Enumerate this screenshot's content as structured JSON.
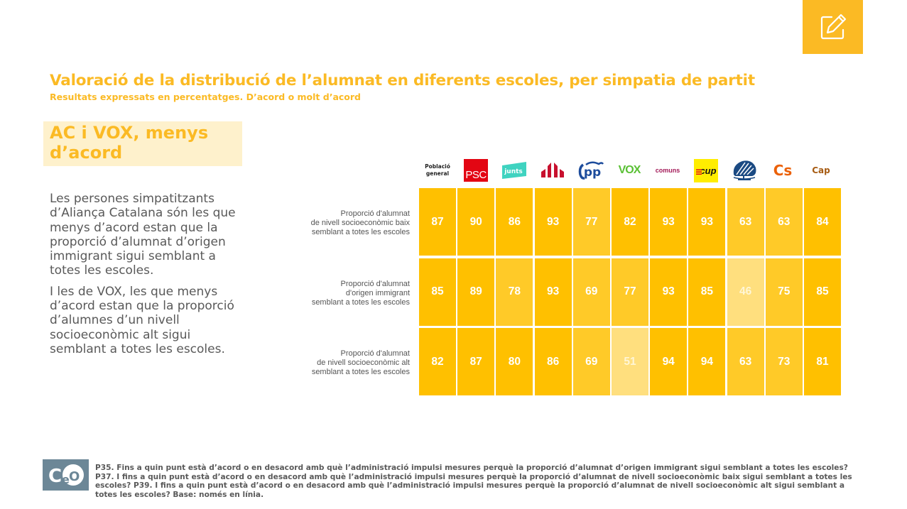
{
  "header": {
    "title": "Valoració de la distribució de l’alumnat en diferents escoles, per simpatia de partit",
    "subtitle": "Resultats expressats en percentatges. D’acord o molt d’acord",
    "edit_icon": "edit-pencil-icon"
  },
  "sidebar": {
    "headline": "AC i VOX, menys d’acord",
    "paragraphs": [
      "Les persones simpatitzants d’Aliança Catalana són les que menys d’acord estan que la proporció d’alumnat d’origen immigrant sigui semblant a totes les escoles.",
      "I les de VOX, les que menys d’acord estan que la proporció d’alumnes d’un nivell socioeconòmic alt sigui semblant a totes les escoles."
    ]
  },
  "chart_data": {
    "type": "heatmap",
    "title": "Valoració de la distribució de l’alumnat en diferents escoles, per simpatia de partit",
    "subtitle": "Resultats expressats en percentatges. D’acord o molt d’acord",
    "columns": [
      {
        "key": "general",
        "label": "Població general",
        "color": "#222222"
      },
      {
        "key": "psc",
        "label": "PSC",
        "color": "#E30613"
      },
      {
        "key": "junts",
        "label": "junts",
        "color": "#3FD3C0"
      },
      {
        "key": "erc",
        "label": "ERC",
        "color": "#C8102E"
      },
      {
        "key": "pp",
        "label": "pp",
        "color": "#1D4C9C"
      },
      {
        "key": "vox",
        "label": "VOX",
        "color": "#5AC035"
      },
      {
        "key": "comuns",
        "label": "comuns",
        "color": "#A31B59"
      },
      {
        "key": "cup",
        "label": "cup",
        "color": "#FFED00"
      },
      {
        "key": "ac",
        "label": "Aliança Catalana",
        "color": "#1B4A83"
      },
      {
        "key": "cs",
        "label": "Cs",
        "color": "#EB6109"
      },
      {
        "key": "cap",
        "label": "Cap",
        "color": "#A65B12"
      }
    ],
    "rows": [
      {
        "label": [
          "Proporció d'alumnat",
          "de nivell socioeconòmic baix",
          "semblant a totes les escoles"
        ],
        "values": [
          87,
          90,
          86,
          93,
          77,
          82,
          93,
          93,
          63,
          63,
          84
        ]
      },
      {
        "label": [
          "Proporció d'alumnat",
          "d'origen immigrant",
          "semblant a totes les escoles"
        ],
        "values": [
          85,
          89,
          78,
          93,
          69,
          77,
          93,
          85,
          46,
          75,
          85
        ]
      },
      {
        "label": [
          "Proporció d'alumnat",
          "de nivell socioeconòmic alt",
          "semblant a totes les escoles"
        ],
        "values": [
          82,
          87,
          80,
          86,
          69,
          51,
          94,
          94,
          63,
          73,
          81
        ]
      }
    ],
    "units": "%",
    "color_scale": {
      "high": "#FFC000",
      "mid": "#FFCA28",
      "low": "#FFDF7E"
    }
  },
  "footer": {
    "logo_text": "CeO",
    "note": "P35. Fins a quin punt està d’acord o en desacord amb què l’administració impulsi mesures perquè la proporció d’alumnat d’origen immigrant sigui semblant a totes les escoles? P37. I fins a quin punt està d’acord o en desacord amb què l’administració impulsi mesures perquè la proporció d’alumnat de nivell socioeconòmic baix sigui semblant a totes les escoles? P39. I fins a quin punt està d’acord o en desacord amb què l’administració impulsi mesures perquè la proporció d’alumnat de nivell socioeconòmic alt sigui semblant a totes les escoles? Base: només en línia."
  }
}
